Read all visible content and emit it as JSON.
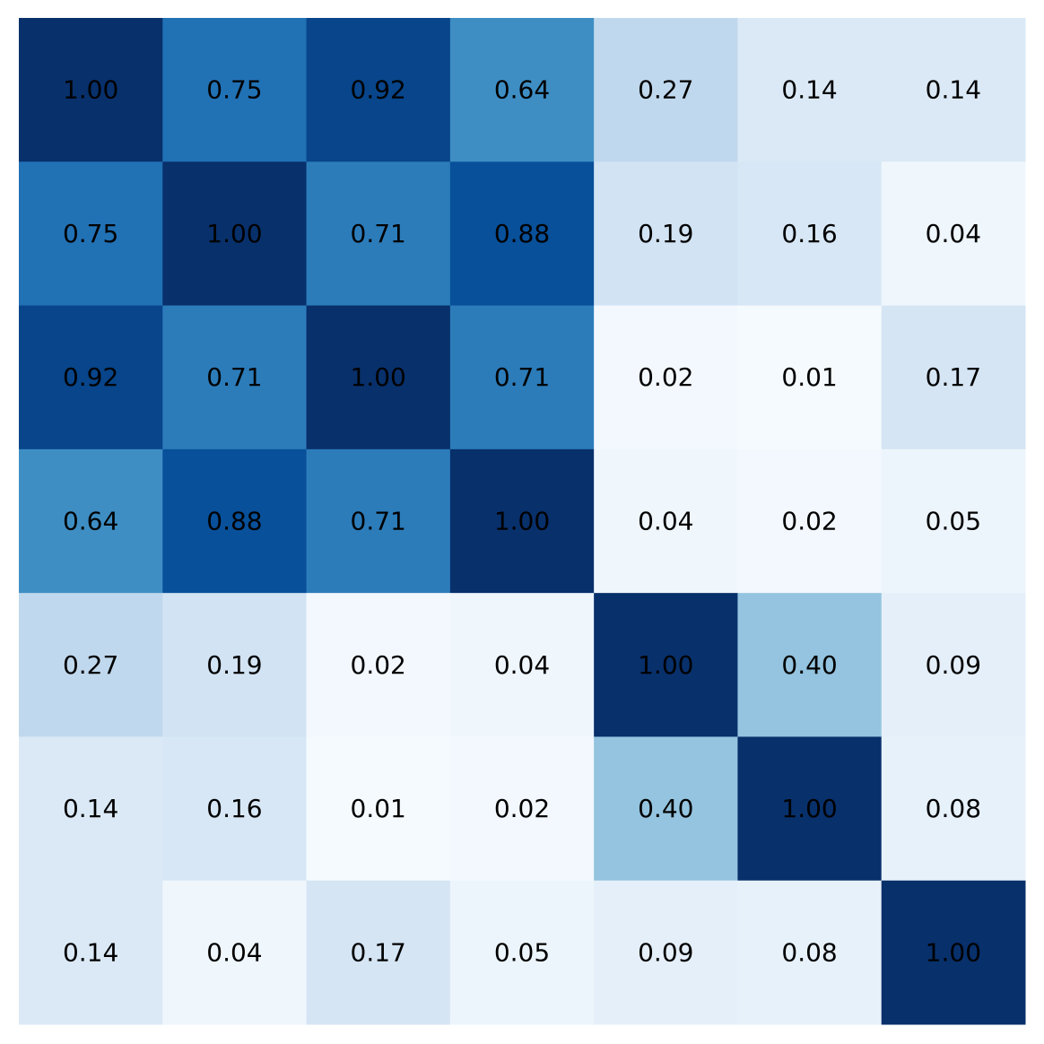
{
  "chart_data": {
    "type": "heatmap",
    "title": "",
    "xlabel": "",
    "ylabel": "",
    "colormap": "Blues",
    "value_range": [
      0,
      1
    ],
    "grid": false,
    "legend": "none",
    "rows": 7,
    "cols": 7,
    "matrix": [
      [
        1.0,
        0.75,
        0.92,
        0.64,
        0.27,
        0.14,
        0.14
      ],
      [
        0.75,
        1.0,
        0.71,
        0.88,
        0.19,
        0.16,
        0.04
      ],
      [
        0.92,
        0.71,
        1.0,
        0.71,
        0.02,
        0.01,
        0.17
      ],
      [
        0.64,
        0.88,
        0.71,
        1.0,
        0.04,
        0.02,
        0.05
      ],
      [
        0.27,
        0.19,
        0.02,
        0.04,
        1.0,
        0.4,
        0.09
      ],
      [
        0.14,
        0.16,
        0.01,
        0.02,
        0.4,
        1.0,
        0.08
      ],
      [
        0.14,
        0.04,
        0.17,
        0.05,
        0.09,
        0.08,
        1.0
      ]
    ],
    "labels": [
      [
        "1.00",
        "0.75",
        "0.92",
        "0.64",
        "0.27",
        "0.14",
        "0.14"
      ],
      [
        "0.75",
        "1.00",
        "0.71",
        "0.88",
        "0.19",
        "0.16",
        "0.04"
      ],
      [
        "0.92",
        "0.71",
        "1.00",
        "0.71",
        "0.02",
        "0.01",
        "0.17"
      ],
      [
        "0.64",
        "0.88",
        "0.71",
        "1.00",
        "0.04",
        "0.02",
        "0.05"
      ],
      [
        "0.27",
        "0.19",
        "0.02",
        "0.04",
        "1.00",
        "0.40",
        "0.09"
      ],
      [
        "0.14",
        "0.16",
        "0.01",
        "0.02",
        "0.40",
        "1.00",
        "0.08"
      ],
      [
        "0.14",
        "0.04",
        "0.17",
        "0.05",
        "0.09",
        "0.08",
        "1.00"
      ]
    ]
  }
}
